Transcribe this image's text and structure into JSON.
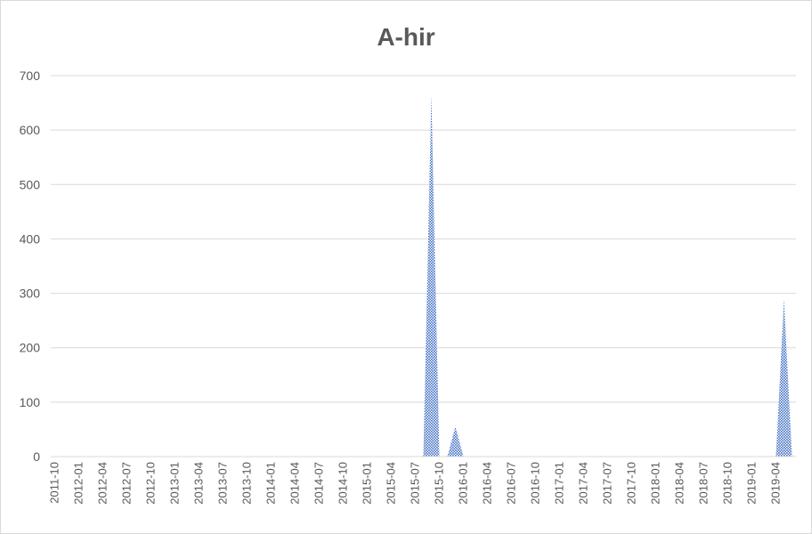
{
  "chart_data": {
    "type": "area",
    "title": "A-hir",
    "xlabel": "",
    "ylabel": "",
    "ylim": [
      0,
      700
    ],
    "y_ticks": [
      0,
      100,
      200,
      300,
      400,
      500,
      600,
      700
    ],
    "grid": true,
    "legend": "none",
    "x_start": "2011-10",
    "x_end": "2019-06",
    "x_tick_labels": [
      "2011-10",
      "2012-01",
      "2012-04",
      "2012-07",
      "2012-10",
      "2013-01",
      "2013-04",
      "2013-07",
      "2013-10",
      "2014-01",
      "2014-04",
      "2014-07",
      "2014-10",
      "2015-01",
      "2015-04",
      "2015-07",
      "2015-10",
      "2016-01",
      "2016-04",
      "2016-07",
      "2016-10",
      "2017-01",
      "2017-04",
      "2017-07",
      "2017-10",
      "2018-01",
      "2018-04",
      "2018-07",
      "2018-10",
      "2019-01",
      "2019-04"
    ],
    "series": [
      {
        "color": "#4472c4",
        "points": [
          {
            "x": "2015-08",
            "y": 0
          },
          {
            "x": "2015-09",
            "y": 665
          },
          {
            "x": "2015-10",
            "y": 0
          },
          {
            "x": "2015-11",
            "y": 0
          },
          {
            "x": "2015-12",
            "y": 55
          },
          {
            "x": "2016-01",
            "y": 0
          },
          {
            "x": "2019-04",
            "y": 0
          },
          {
            "x": "2019-05",
            "y": 290
          },
          {
            "x": "2019-06",
            "y": 0
          }
        ]
      }
    ]
  }
}
